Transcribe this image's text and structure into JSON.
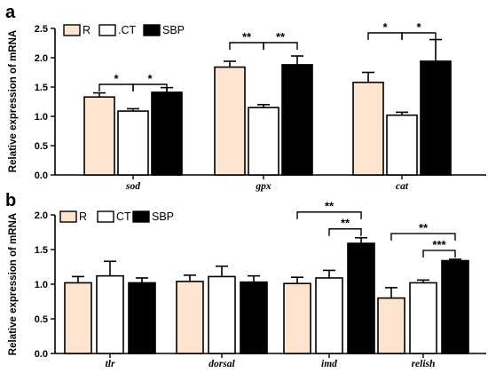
{
  "colors": {
    "R": "#FCE4CF",
    "CT": "#FFFFFF",
    "SBP": "#000000",
    "axis": "#000000"
  },
  "chart_data": [
    {
      "type": "bar",
      "panel": "a",
      "ylabel": "Relative expression of mRNA",
      "ylim": [
        0,
        2.5
      ],
      "yticks": [
        "0.0",
        "0.5",
        "1.0",
        "1.5",
        "2.0",
        "2.5"
      ],
      "categories": [
        "sod",
        "gpx",
        "cat"
      ],
      "legend": [
        "R",
        ".CT",
        "SBP"
      ],
      "series": [
        {
          "name": "R",
          "values": [
            1.33,
            1.84,
            1.58
          ],
          "errors": [
            0.07,
            0.1,
            0.17
          ]
        },
        {
          "name": ".CT",
          "values": [
            1.09,
            1.15,
            1.02
          ],
          "errors": [
            0.04,
            0.05,
            0.05
          ]
        },
        {
          "name": "SBP",
          "values": [
            1.41,
            1.88,
            1.94
          ],
          "errors": [
            0.08,
            0.15,
            0.37
          ]
        }
      ],
      "significance": [
        {
          "category": "sod",
          "from": "R",
          "to": ".CT",
          "label": "*"
        },
        {
          "category": "sod",
          "from": ".CT",
          "to": "SBP",
          "label": "*"
        },
        {
          "category": "gpx",
          "from": "R",
          "to": ".CT",
          "label": "**"
        },
        {
          "category": "gpx",
          "from": ".CT",
          "to": "SBP",
          "label": "**"
        },
        {
          "category": "cat",
          "from": "R",
          "to": ".CT",
          "label": "*"
        },
        {
          "category": "cat",
          "from": ".CT",
          "to": "SBP",
          "label": "*"
        }
      ]
    },
    {
      "type": "bar",
      "panel": "b",
      "ylabel": "Relative expression of mRNA",
      "ylim": [
        0,
        2.0
      ],
      "yticks": [
        "0.0",
        "0.5",
        "1.0",
        "1.5",
        "2.0"
      ],
      "categories": [
        "tlr",
        "dorsal",
        "imd",
        "relish"
      ],
      "legend": [
        "R",
        "CT",
        "SBP"
      ],
      "series": [
        {
          "name": "R",
          "values": [
            1.02,
            1.04,
            1.01,
            0.8
          ],
          "errors": [
            0.09,
            0.09,
            0.09,
            0.15
          ]
        },
        {
          "name": "CT",
          "values": [
            1.12,
            1.11,
            1.09,
            1.02
          ],
          "errors": [
            0.21,
            0.15,
            0.11,
            0.04
          ]
        },
        {
          "name": "SBP",
          "values": [
            1.02,
            1.03,
            1.59,
            1.34
          ],
          "errors": [
            0.07,
            0.09,
            0.08,
            0.02
          ]
        }
      ],
      "significance": [
        {
          "category": "imd",
          "from": "R",
          "to": "SBP",
          "label": "**",
          "level": 2
        },
        {
          "category": "imd",
          "from": "CT",
          "to": "SBP",
          "label": "**",
          "level": 1
        },
        {
          "category": "relish",
          "from": "R",
          "to": "SBP",
          "label": "**",
          "level": 2
        },
        {
          "category": "relish",
          "from": "CT",
          "to": "SBP",
          "label": "***",
          "level": 1
        }
      ]
    }
  ]
}
